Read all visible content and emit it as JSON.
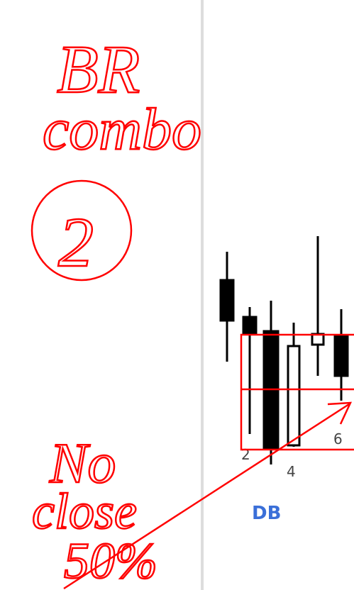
{
  "annotations": {
    "line1": "BR",
    "line2": "combo",
    "circled": "2",
    "note_line1": "No",
    "note_line2": "close",
    "note_line3": "50%"
  },
  "chart_labels": {
    "bar_2": "2",
    "bar_4": "4",
    "bar_6": "6",
    "pattern": "DB"
  }
}
